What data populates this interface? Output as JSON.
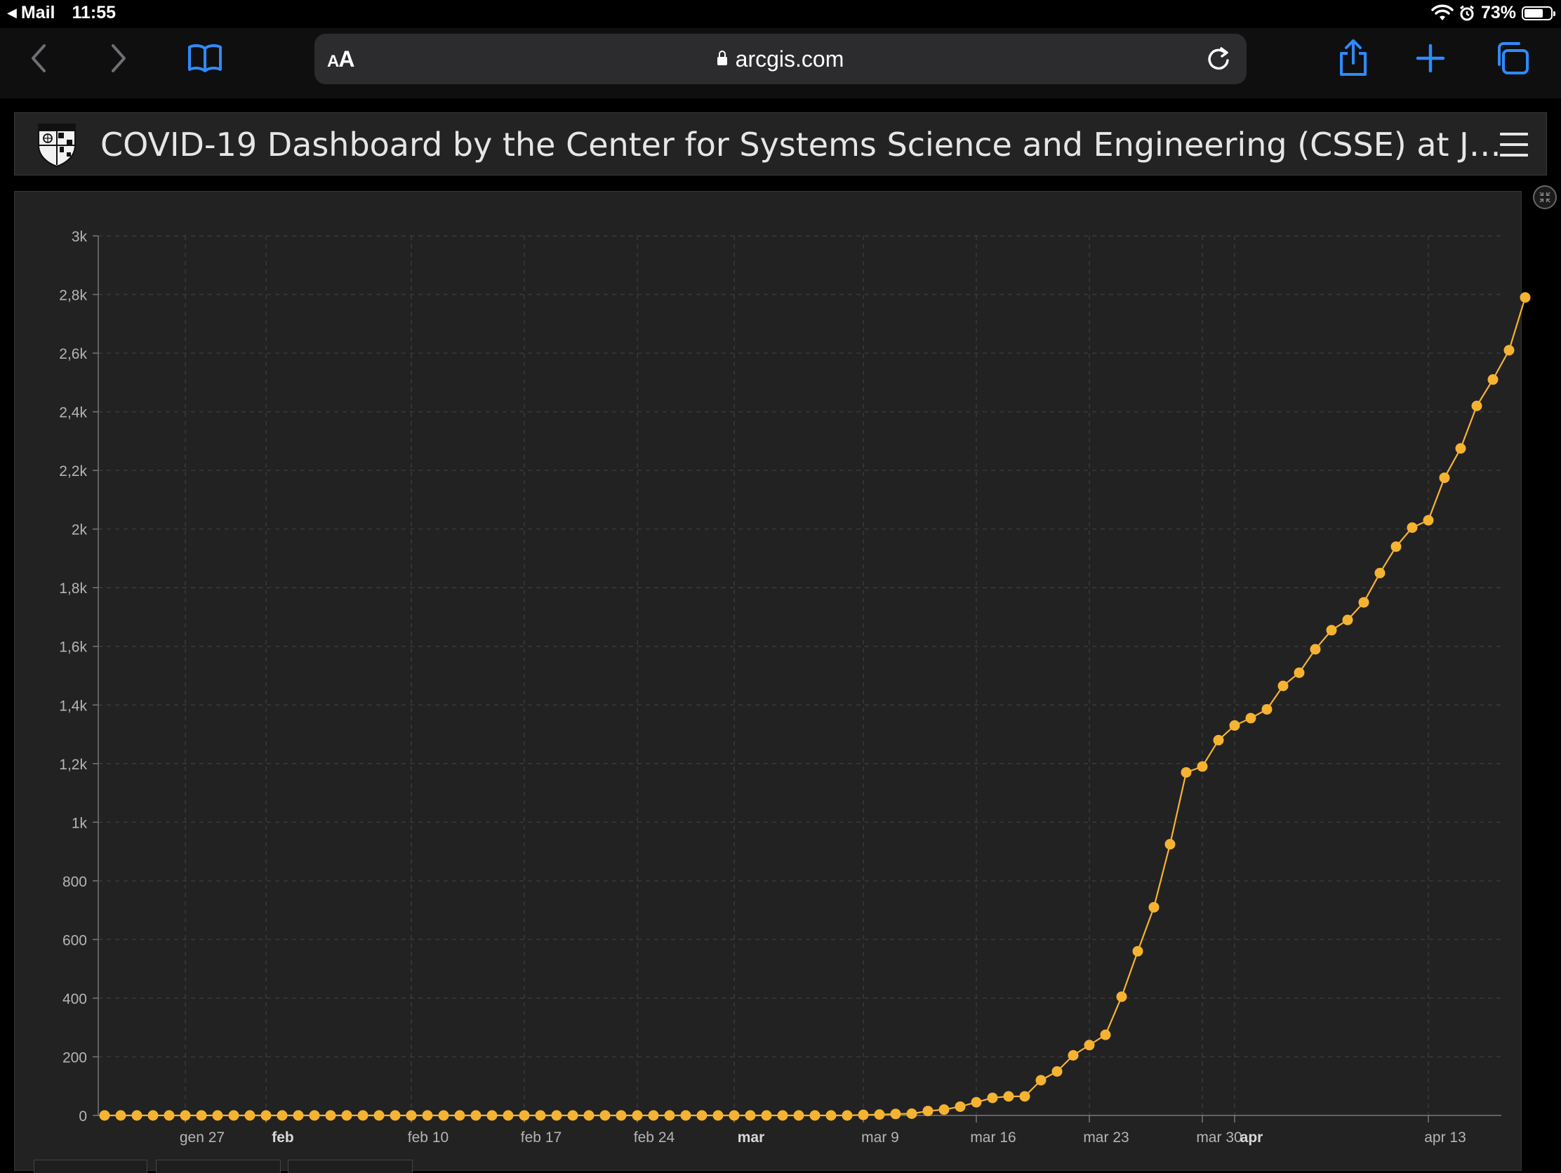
{
  "status_bar": {
    "back_app": "Mail",
    "time": "11:55",
    "battery_percent": "73%",
    "battery_level": 0.73
  },
  "browser": {
    "text_size_label": "AA",
    "url": "arcgis.com"
  },
  "dashboard": {
    "title": "COVID-19 Dashboard by the Center for Systems Science and Engineering (CSSE) at J…"
  },
  "colors": {
    "series": "#f6b332",
    "grid": "#3a3a3a",
    "axis_text": "#b5b5b5",
    "accent_ios": "#2f8bff"
  },
  "chart_data": {
    "type": "line",
    "title": "",
    "xlabel": "",
    "ylabel": "",
    "ylim": [
      0,
      3000
    ],
    "x_start": "2020-01-22",
    "x_end": "2020-04-17",
    "y_ticks": [
      {
        "value": 0,
        "label": "0"
      },
      {
        "value": 200,
        "label": "200"
      },
      {
        "value": 400,
        "label": "400"
      },
      {
        "value": 600,
        "label": "600"
      },
      {
        "value": 800,
        "label": "800"
      },
      {
        "value": 1000,
        "label": "1k"
      },
      {
        "value": 1200,
        "label": "1,2k"
      },
      {
        "value": 1400,
        "label": "1,4k"
      },
      {
        "value": 1600,
        "label": "1,6k"
      },
      {
        "value": 1800,
        "label": "1,8k"
      },
      {
        "value": 2000,
        "label": "2k"
      },
      {
        "value": 2200,
        "label": "2,2k"
      },
      {
        "value": 2400,
        "label": "2,4k"
      },
      {
        "value": 2600,
        "label": "2,6k"
      },
      {
        "value": 2800,
        "label": "2,8k"
      },
      {
        "value": 3000,
        "label": "3k"
      }
    ],
    "x_ticks": [
      {
        "date": "2020-01-27",
        "label": "gen 27",
        "bold": false
      },
      {
        "date": "2020-02-01",
        "label": "feb",
        "bold": true
      },
      {
        "date": "2020-02-10",
        "label": "feb 10",
        "bold": false
      },
      {
        "date": "2020-02-17",
        "label": "feb 17",
        "bold": false
      },
      {
        "date": "2020-02-24",
        "label": "feb 24",
        "bold": false
      },
      {
        "date": "2020-03-01",
        "label": "mar",
        "bold": true
      },
      {
        "date": "2020-03-09",
        "label": "mar 9",
        "bold": false
      },
      {
        "date": "2020-03-16",
        "label": "mar 16",
        "bold": false
      },
      {
        "date": "2020-03-23",
        "label": "mar 23",
        "bold": false
      },
      {
        "date": "2020-03-30",
        "label": "mar 30",
        "bold": false
      },
      {
        "date": "2020-04-01",
        "label": "apr",
        "bold": true
      },
      {
        "date": "2020-04-13",
        "label": "apr 13",
        "bold": false
      }
    ],
    "grid": true,
    "series": [
      {
        "color": "#f6b332",
        "values": [
          0,
          0,
          0,
          0,
          0,
          0,
          0,
          0,
          0,
          0,
          0,
          0,
          0,
          0,
          0,
          0,
          0,
          0,
          0,
          0,
          0,
          0,
          0,
          0,
          0,
          0,
          0,
          0,
          0,
          0,
          0,
          0,
          0,
          0,
          0,
          0,
          0,
          0,
          0,
          0,
          0,
          0,
          0,
          0,
          0,
          0,
          0,
          2,
          3,
          5,
          6,
          15,
          20,
          30,
          45,
          60,
          65,
          65,
          120,
          150,
          205,
          240,
          275,
          405,
          560,
          710,
          925,
          1170,
          1190,
          1280,
          1330,
          1355,
          1385,
          1465,
          1510,
          1590,
          1655,
          1690,
          1750,
          1850,
          1940,
          2005,
          2030,
          2175,
          2275,
          2420,
          2510,
          2610,
          2790
        ]
      }
    ]
  }
}
